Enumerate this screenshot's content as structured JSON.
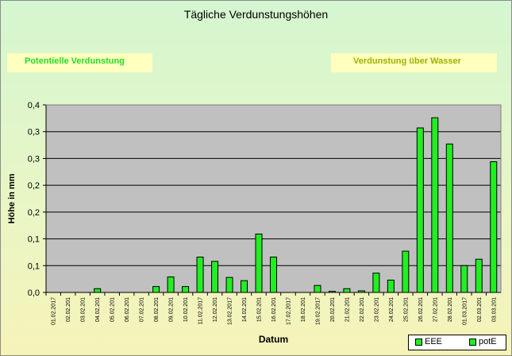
{
  "colors": {
    "bar": "#22ee22",
    "plot_bg": "#c0c0c0"
  },
  "header": {
    "title": "Tägliche Verdunstungshöhen"
  },
  "panels": {
    "left_label": "Potentielle Verdunstung",
    "right_label": "Verdunstung über Wasser"
  },
  "legend": {
    "items": [
      {
        "label": "EEE"
      },
      {
        "label": "potE"
      }
    ]
  },
  "chart_data": {
    "type": "bar",
    "title": "Tägliche Verdunstungshöhen",
    "xlabel": "Datum",
    "ylabel": "Höhe in mm",
    "ylim": [
      0,
      0.35
    ],
    "y_ticks": [
      0,
      0.05,
      0.1,
      0.15,
      0.2,
      0.25,
      0.3,
      0.35
    ],
    "y_tick_labels": [
      "0,0",
      "0,1",
      "0,1",
      "0,2",
      "0,2",
      "0,3",
      "0,3",
      "0,4"
    ],
    "grid": true,
    "legend_position": "bottom-right",
    "categories": [
      "01.02.2017",
      "02.02.201",
      "03.02.201",
      "04.02.201",
      "05.02.201",
      "06.02.201",
      "07.02.201",
      "08.02.201",
      "09.02.201",
      "10.02.201",
      "11.02.2017",
      "12.02.201",
      "13.02.2017",
      "14.02.201",
      "15.02.201",
      "16.02.201",
      "17.02.2017",
      "18.02.201",
      "19.02.2017",
      "20.02.201",
      "21.02.201",
      "22.02.201",
      "23.02.201",
      "24.02.201",
      "25.02.201",
      "26.02.201",
      "27.02.201",
      "28.02.201",
      "01.03.2017",
      "02.03.201",
      "03.03.201"
    ],
    "series": [
      {
        "name": "EEE",
        "values": [
          0,
          0,
          0,
          0,
          0,
          0,
          0,
          0,
          0,
          0,
          0,
          0,
          0,
          0,
          0,
          0,
          0,
          0,
          0,
          0,
          0,
          0,
          0,
          0,
          0,
          0,
          0,
          0,
          0,
          0,
          0
        ]
      },
      {
        "name": "potE",
        "values": [
          0,
          0,
          0,
          0.007,
          0,
          0,
          0,
          0.011,
          0.029,
          0.011,
          0.066,
          0.058,
          0.028,
          0.022,
          0.109,
          0.066,
          0,
          0,
          0.013,
          0.002,
          0.007,
          0.003,
          0.036,
          0.023,
          0.077,
          0.307,
          0.326,
          0.277,
          0.05,
          0.062,
          0.244
        ]
      }
    ]
  }
}
